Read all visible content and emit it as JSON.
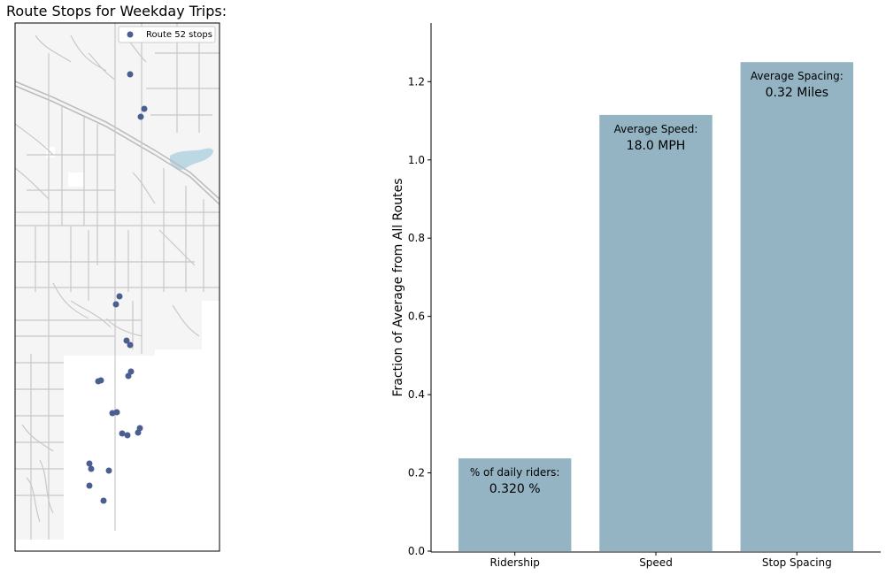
{
  "map": {
    "title": "Route Stops for Weekday Trips:",
    "legend_label": "Route 52 stops",
    "stop_color": "#4a5f8f",
    "water_color": "#bcd8e4",
    "road_color": "#c8c8c8",
    "land_color": "#f5f5f5"
  },
  "chart_data": {
    "type": "bar",
    "categories": [
      "Ridership",
      "Speed",
      "Stop Spacing"
    ],
    "values": [
      0.237,
      1.115,
      1.25
    ],
    "ylabel": "Fraction of Average from All Routes",
    "ylim": [
      0,
      1.35
    ],
    "yticks": [
      0.0,
      0.2,
      0.4,
      0.6,
      0.8,
      1.0,
      1.2
    ],
    "bar_color": "#94b4c4",
    "annotations": [
      {
        "label": "% of daily riders:",
        "value": "0.320 %"
      },
      {
        "label": "Average Speed:",
        "value": "18.0 MPH"
      },
      {
        "label": "Average Spacing:",
        "value": "0.32 Miles"
      }
    ]
  }
}
